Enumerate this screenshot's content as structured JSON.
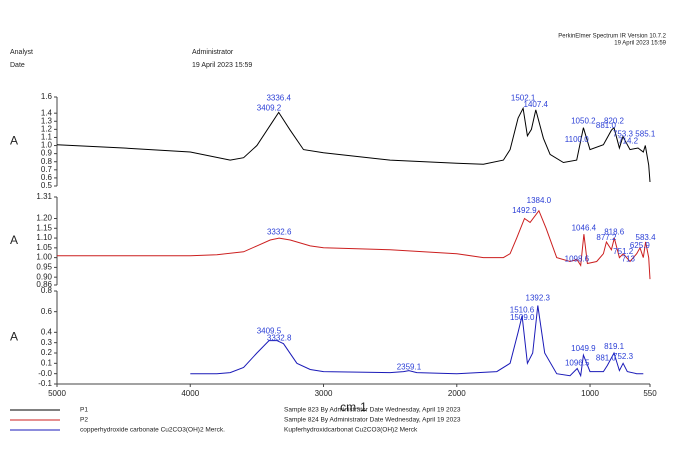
{
  "header": {
    "software": "PerkinElmer Spectrum IR Version 10.7.2",
    "timestamp": "19 April 2023 15:59",
    "analyst_label": "Analyst",
    "analyst": "Administrator",
    "date_label": "Date",
    "date": "19 April 2023 15:59"
  },
  "chart_data": [
    {
      "type": "line",
      "y_label": "A",
      "xlim": [
        5000,
        550
      ],
      "ylim": [
        0.5,
        1.6
      ],
      "yticks": [
        0.5,
        0.6,
        0.7,
        0.8,
        0.9,
        {
          "value": 1,
          "label": "1.0"
        },
        1.1,
        1.2,
        1.3,
        1.4,
        1.6
      ],
      "x": [
        5000,
        4500,
        4000,
        3700,
        3600,
        3500,
        3400,
        3336,
        3250,
        3150,
        3000,
        2500,
        2000,
        1800,
        1650,
        1600,
        1540,
        1502,
        1470,
        1440,
        1407,
        1350,
        1300,
        1200,
        1100,
        1050,
        1000,
        900,
        840,
        820,
        780,
        753,
        700,
        640,
        600,
        585,
        560,
        550
      ],
      "series": [
        {
          "name": "P1",
          "description": "Sample 823 By Administrator Date Wednesday, April 19 2023",
          "color": "#000000",
          "values": [
            1.01,
            0.97,
            0.92,
            0.82,
            0.85,
            1.0,
            1.25,
            1.41,
            1.19,
            0.95,
            0.91,
            0.82,
            0.78,
            0.77,
            0.82,
            0.95,
            1.34,
            1.46,
            1.12,
            1.2,
            1.44,
            1.09,
            0.89,
            0.79,
            0.82,
            1.22,
            0.95,
            1.01,
            1.19,
            1.22,
            0.97,
            1.11,
            0.95,
            0.97,
            0.92,
            1.0,
            0.76,
            0.55
          ]
        }
      ],
      "annotations": [
        {
          "text": "3336.4",
          "x": 3336.4,
          "y": 1.58
        },
        {
          "text": "3409.2",
          "x": 3409.2,
          "y": 1.46
        },
        {
          "text": "1502.1",
          "x": 1502.1,
          "y": 1.58
        },
        {
          "text": "1407.4",
          "x": 1407.4,
          "y": 1.5
        },
        {
          "text": "1050.2",
          "x": 1050.2,
          "y": 1.3
        },
        {
          "text": "820.2",
          "x": 820.2,
          "y": 1.3
        },
        {
          "text": "1100.0",
          "x": 1100.0,
          "y": 1.07
        },
        {
          "text": "881.0",
          "x": 881.0,
          "y": 1.24
        },
        {
          "text": "753.3",
          "x": 753.3,
          "y": 1.14
        },
        {
          "text": "585.1",
          "x": 585.1,
          "y": 1.14
        },
        {
          "text": "714.2",
          "x": 714.2,
          "y": 1.05
        }
      ]
    },
    {
      "type": "line",
      "y_label": "A",
      "xlim": [
        5000,
        550
      ],
      "ylim": [
        0.86,
        1.31
      ],
      "yticks": [
        0.86,
        {
          "value": 0.9,
          "label": "0.90"
        },
        0.95,
        {
          "value": 1,
          "label": "1.00"
        },
        1.05,
        {
          "value": 1.1,
          "label": "1.10"
        },
        1.15,
        {
          "value": 1.2,
          "label": "1.20"
        },
        1.31
      ],
      "x": [
        5000,
        4000,
        3800,
        3600,
        3500,
        3400,
        3333,
        3250,
        3100,
        3000,
        2500,
        2000,
        1800,
        1650,
        1600,
        1550,
        1492,
        1450,
        1384,
        1330,
        1250,
        1150,
        1098,
        1070,
        1046,
        1020,
        950,
        900,
        877,
        840,
        818,
        780,
        751,
        700,
        650,
        625,
        600,
        583,
        560,
        550
      ],
      "series": [
        {
          "name": "P2",
          "description": "Sample 824 By Administrator Date Wednesday, April 19 2023",
          "color": "#cc1f1f",
          "values": [
            1.01,
            1.01,
            1.015,
            1.03,
            1.06,
            1.09,
            1.1,
            1.09,
            1.06,
            1.05,
            1.04,
            1.02,
            1.0,
            1.0,
            1.02,
            1.1,
            1.2,
            1.18,
            1.24,
            1.15,
            1.0,
            0.98,
            0.99,
            0.96,
            1.12,
            0.97,
            0.98,
            1.02,
            1.08,
            1.04,
            1.1,
            1.0,
            1.02,
            0.98,
            1.02,
            1.05,
            1.0,
            1.08,
            1.0,
            0.89
          ]
        }
      ],
      "annotations": [
        {
          "text": "3332.6",
          "x": 3332.6,
          "y": 1.13
        },
        {
          "text": "1492.9",
          "x": 1492.9,
          "y": 1.24
        },
        {
          "text": "1384.0",
          "x": 1384.0,
          "y": 1.29
        },
        {
          "text": "1046.4",
          "x": 1046.4,
          "y": 1.15
        },
        {
          "text": "1098.6",
          "x": 1098.6,
          "y": 0.99
        },
        {
          "text": "877.2",
          "x": 877.2,
          "y": 1.1
        },
        {
          "text": "818.6",
          "x": 818.6,
          "y": 1.13
        },
        {
          "text": "751.2",
          "x": 751.2,
          "y": 1.03
        },
        {
          "text": "713",
          "x": 713,
          "y": 0.99
        },
        {
          "text": "625.9",
          "x": 625.9,
          "y": 1.06
        },
        {
          "text": "583.4",
          "x": 583.4,
          "y": 1.1
        }
      ]
    },
    {
      "type": "line",
      "y_label": "A",
      "x_label": "cm-1",
      "xlim": [
        5000,
        550
      ],
      "ylim": [
        -0.1,
        0.8
      ],
      "xticks": [
        5000,
        4000,
        3000,
        2000,
        1000,
        550
      ],
      "yticks": [
        -0.1,
        {
          "value": 0,
          "label": "-0.0"
        },
        0.1,
        0.2,
        0.3,
        0.4,
        0.6,
        0.8
      ],
      "x": [
        4000,
        3800,
        3700,
        3600,
        3500,
        3409,
        3350,
        3300,
        3200,
        3100,
        3000,
        2500,
        2400,
        2359,
        2300,
        2000,
        1700,
        1600,
        1540,
        1510,
        1470,
        1430,
        1392,
        1340,
        1250,
        1150,
        1096,
        1070,
        1050,
        1000,
        900,
        870,
        820,
        780,
        752,
        720,
        650,
        600
      ],
      "series": [
        {
          "name": "copperhydroxide carbonate Cu2CO3(OH)2 Merck.",
          "description": "Kupferhydroxidcarbonat Cu2CO3(OH)2 Merck",
          "color": "#1a1ab8",
          "values": [
            0.0,
            0.0,
            0.01,
            0.06,
            0.2,
            0.32,
            0.32,
            0.29,
            0.1,
            0.04,
            0.02,
            0.01,
            0.02,
            0.03,
            0.01,
            0.0,
            0.02,
            0.1,
            0.4,
            0.56,
            0.1,
            0.2,
            0.66,
            0.2,
            0.0,
            -0.02,
            0.05,
            -0.02,
            0.18,
            0.02,
            0.02,
            0.08,
            0.2,
            0.03,
            0.1,
            0.02,
            0.0,
            0.0
          ]
        }
      ],
      "annotations": [
        {
          "text": "3409.5",
          "x": 3409.5,
          "y": 0.41
        },
        {
          "text": "3332.8",
          "x": 3332.8,
          "y": 0.34
        },
        {
          "text": "2359.1",
          "x": 2359.1,
          "y": 0.06
        },
        {
          "text": "1510.6",
          "x": 1510.6,
          "y": 0.61
        },
        {
          "text": "1509.0",
          "x": 1509.0,
          "y": 0.54
        },
        {
          "text": "1392.3",
          "x": 1392.3,
          "y": 0.73
        },
        {
          "text": "1049.9",
          "x": 1049.9,
          "y": 0.24
        },
        {
          "text": "1096.5",
          "x": 1096.5,
          "y": 0.1
        },
        {
          "text": "881.0",
          "x": 881.0,
          "y": 0.15
        },
        {
          "text": "819.1",
          "x": 819.1,
          "y": 0.26
        },
        {
          "text": "752.3",
          "x": 752.3,
          "y": 0.16
        }
      ]
    }
  ]
}
